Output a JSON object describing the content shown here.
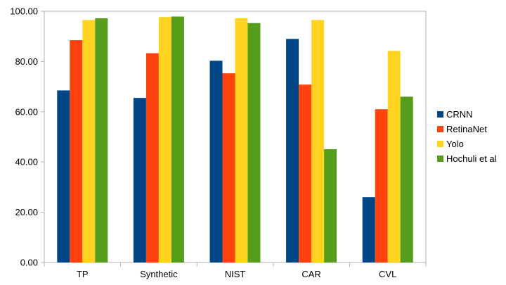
{
  "chart_data": {
    "type": "bar",
    "title": "",
    "xlabel": "",
    "ylabel": "",
    "categories": [
      "TP",
      "Synthetic",
      "NIST",
      "CAR",
      "CVL"
    ],
    "series": [
      {
        "name": "CRNN",
        "color": "#004586",
        "values": [
          68.5,
          65.5,
          80.3,
          89.0,
          26.0
        ]
      },
      {
        "name": "RetinaNet",
        "color": "#ff420e",
        "values": [
          88.5,
          83.3,
          75.3,
          70.8,
          61.0
        ]
      },
      {
        "name": "Yolo",
        "color": "#ffd320",
        "values": [
          96.5,
          97.7,
          97.2,
          96.5,
          84.2
        ]
      },
      {
        "name": "Hochuli et al",
        "color": "#579d1c",
        "values": [
          97.2,
          97.9,
          95.3,
          45.1,
          66.0
        ]
      }
    ],
    "ylim": [
      0,
      100
    ],
    "yticks": [
      "0.00",
      "20.00",
      "40.00",
      "60.00",
      "80.00",
      "100.00"
    ],
    "grid": false,
    "legend_position": "right"
  }
}
